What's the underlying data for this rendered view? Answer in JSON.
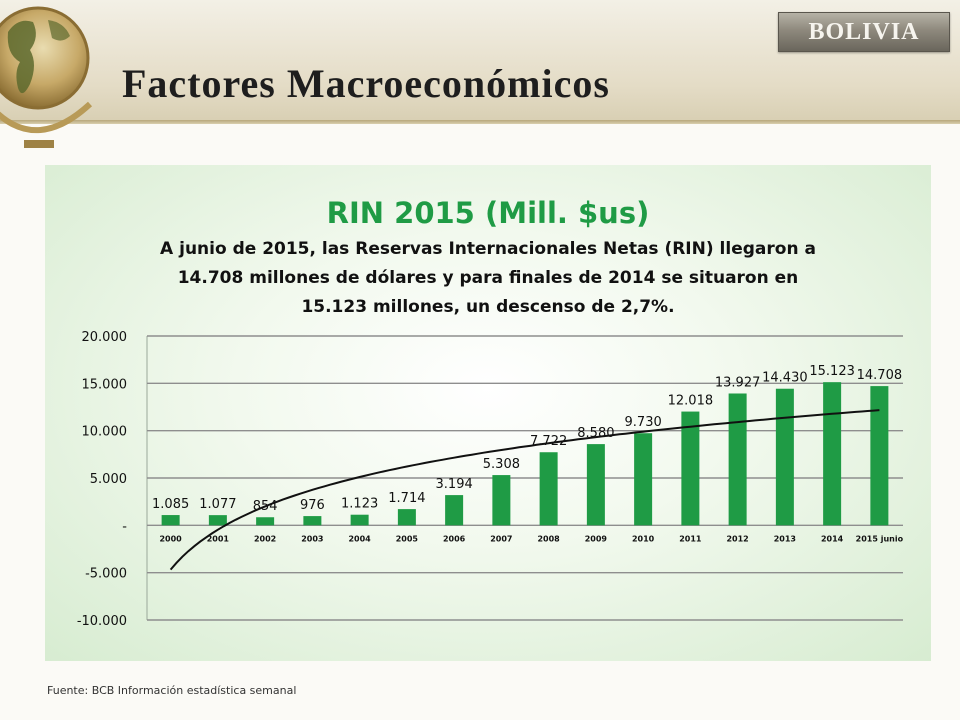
{
  "header": {
    "title": "Factores Macroeconómicos",
    "badge": "BOLIVIA"
  },
  "chart_data": {
    "type": "bar",
    "title": "RIN 2015 (Mill. $us)",
    "subtitle_lines": [
      "A  junio  de 2015, las Reservas Internacionales Netas (RIN)  llegaron a",
      "14.708 millones de dólares y para finales de 2014 se situaron en",
      "15.123  millones, un descenso de 2,7%."
    ],
    "categories": [
      "2000",
      "2001",
      "2002",
      "2003",
      "2004",
      "2005",
      "2006",
      "2007",
      "2008",
      "2009",
      "2010",
      "2011",
      "2012",
      "2013",
      "2014",
      "2015 junio"
    ],
    "values": [
      1085,
      1077,
      854,
      976,
      1123,
      1714,
      3194,
      5308,
      7722,
      8580,
      9730,
      12018,
      13927,
      14430,
      15123,
      14708
    ],
    "data_labels": [
      "1.085",
      "1.077",
      "854",
      "976",
      "1.123",
      "1.714",
      "3.194",
      "5.308",
      "7.722",
      "8.580",
      "9.730",
      "12.018",
      "13.927",
      "14.430",
      "15.123",
      "14.708"
    ],
    "ylim": [
      -10000,
      20000
    ],
    "y_ticks": [
      20000,
      15000,
      10000,
      5000,
      0,
      -5000,
      -10000
    ],
    "y_tick_labels": [
      "20.000",
      "15.000",
      "10.000",
      "5.000",
      "-",
      "-5.000",
      "-10.000"
    ],
    "grid": true,
    "trendline": "logarithmic",
    "bar_color": "#1f9b45",
    "trend_color": "#111111",
    "title_color": "#1f9b45"
  },
  "footer": {
    "source": "Fuente: BCB Información estadística semanal"
  }
}
